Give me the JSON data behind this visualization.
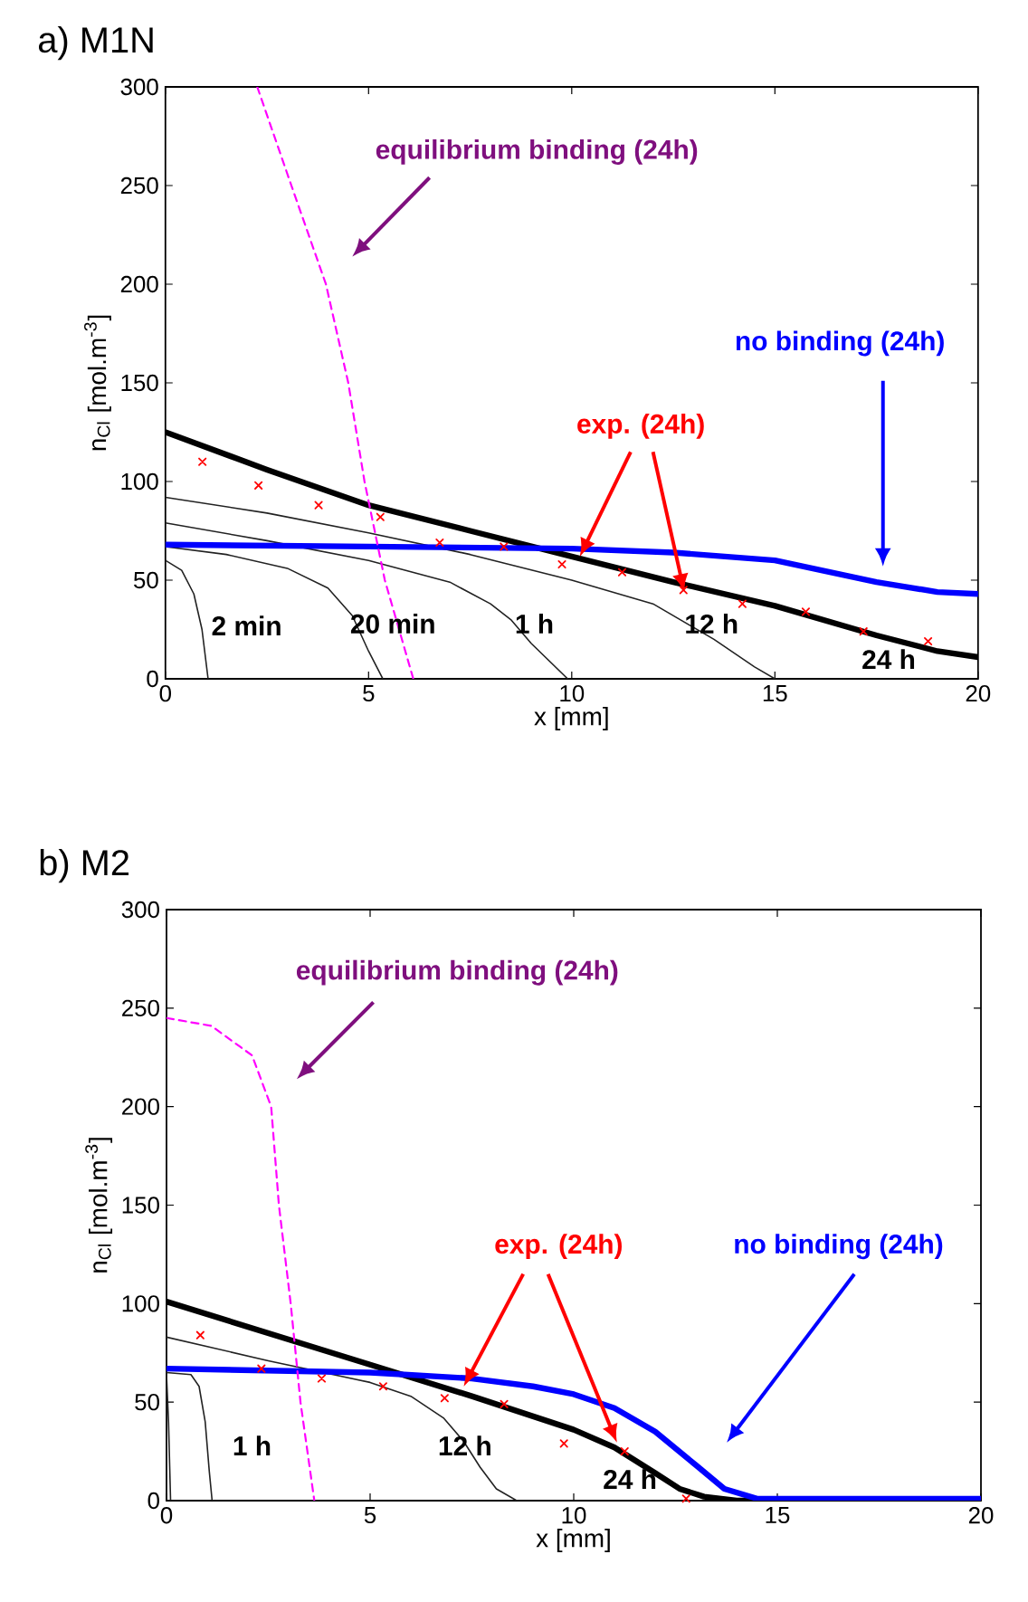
{
  "chart_data": [
    {
      "type": "line",
      "title": "a) M1N",
      "xlabel": "x [mm]",
      "ylabel": "n$_{Cl}$ [mol.m$^{-3}$]",
      "xlim": [
        0,
        20
      ],
      "ylim": [
        0,
        300
      ],
      "xticks": [
        0,
        5,
        10,
        15,
        20
      ],
      "yticks": [
        0,
        50,
        100,
        150,
        200,
        250,
        300
      ],
      "series": [
        {
          "color": "#222222",
          "x": [
            0,
            0.4,
            0.7,
            0.9,
            1.05
          ],
          "values": [
            60,
            55,
            43,
            25,
            0
          ]
        },
        {
          "color": "#222222",
          "x": [
            0,
            1.5,
            3,
            4,
            4.6,
            5.0,
            5.35
          ],
          "values": [
            67,
            63,
            56,
            46,
            32,
            14,
            0
          ]
        },
        {
          "color": "#222222",
          "x": [
            0,
            2.5,
            5,
            7,
            8,
            8.5,
            9,
            9.9
          ],
          "values": [
            79,
            70,
            60,
            49,
            38,
            30,
            18,
            0
          ]
        },
        {
          "color": "#222222",
          "x": [
            0,
            2.5,
            5,
            7.5,
            10,
            12,
            13.5,
            14.5,
            15
          ],
          "values": [
            92,
            84,
            74,
            63,
            50,
            38,
            20,
            6,
            0
          ]
        },
        {
          "color": "#000000",
          "x": [
            0,
            2.5,
            5,
            7.5,
            10,
            12.5,
            15,
            17.5,
            19,
            20
          ],
          "values": [
            125,
            106,
            88,
            75,
            62,
            49,
            37,
            22,
            14,
            11
          ]
        },
        {
          "color": "#0000ff",
          "x": [
            0,
            5,
            10,
            12.5,
            15,
            17.5,
            19,
            20
          ],
          "values": [
            68,
            67,
            66,
            64,
            60,
            49,
            44,
            43
          ]
        },
        {
          "color": "#ff00ff",
          "line_style": "dashed",
          "x": [
            2.26,
            3.1,
            3.95,
            4.5,
            4.9,
            5.4,
            6.1
          ],
          "values": [
            300,
            250,
            200,
            150,
            100,
            50,
            0
          ]
        },
        {
          "type": "scatter",
          "marker": "cross",
          "color": "#ff0000",
          "x": [
            0.91,
            2.29,
            3.77,
            5.29,
            6.75,
            8.33,
            9.76,
            11.24,
            12.75,
            14.2,
            15.76,
            17.18,
            18.77
          ],
          "values": [
            110,
            98,
            88,
            82,
            69,
            67,
            58,
            54,
            45,
            38,
            34,
            24,
            19
          ]
        }
      ],
      "annotations": [
        "equilibrium binding (24h)",
        "no binding (24h)",
        {
          "text": "exp. (24h)",
          "x": 10.2,
          "y": 62
        },
        "2 min",
        "20 min",
        "1 h",
        "12 h",
        "24 h"
      ]
    },
    {
      "type": "line",
      "title": "b) M2",
      "xlabel": "x [mm]",
      "ylabel": "n$_{Cl}$ [mol.m$^{-3}$]",
      "xlim": [
        0,
        20
      ],
      "ylim": [
        0,
        300
      ],
      "xticks": [
        0,
        5,
        10,
        15,
        20
      ],
      "yticks": [
        0,
        50,
        100,
        150,
        200,
        250,
        300
      ],
      "series": [
        {
          "color": "#222222",
          "x": [
            0,
            0.05,
            0.1
          ],
          "values": [
            64,
            40,
            0
          ]
        },
        {
          "color": "#222222",
          "x": [
            0,
            0.6,
            0.8,
            0.95,
            1.05,
            1.12
          ],
          "values": [
            65,
            64,
            58,
            40,
            15,
            0
          ]
        },
        {
          "color": "#222222",
          "x": [
            0,
            2.5,
            5,
            6,
            6.8,
            7.3,
            7.7,
            8.1,
            8.6
          ],
          "values": [
            83,
            71,
            60,
            53,
            42,
            30,
            17,
            6,
            0
          ]
        },
        {
          "color": "#000000",
          "x": [
            0,
            2.5,
            5,
            7.5,
            10,
            11,
            12,
            12.6,
            13.2,
            14,
            20
          ],
          "values": [
            101,
            85,
            69,
            53,
            36,
            27,
            14,
            6,
            2,
            0,
            0
          ]
        },
        {
          "color": "#0000ff",
          "x": [
            0,
            5,
            7.5,
            9,
            10,
            11,
            12,
            13,
            13.7,
            14.5,
            20
          ],
          "values": [
            67,
            65,
            62,
            58,
            54,
            47,
            35,
            18,
            6,
            1,
            1
          ]
        },
        {
          "color": "#ff00ff",
          "line_style": "dashed",
          "x": [
            0,
            1.1,
            2.1,
            2.57,
            2.76,
            3.05,
            3.29,
            3.63
          ],
          "values": [
            245,
            241,
            226,
            200,
            150,
            100,
            50,
            0
          ]
        },
        {
          "type": "scatter",
          "marker": "cross",
          "color": "#ff0000",
          "x": [
            0.83,
            2.33,
            3.81,
            5.32,
            6.83,
            8.29,
            9.76,
            11.25,
            12.76
          ],
          "values": [
            84,
            67,
            62,
            58,
            52,
            49,
            29,
            25,
            1
          ]
        }
      ],
      "annotations": [
        "equilibrium binding (24h)",
        {
          "text": "exp. (24h)",
          "x": 7.3,
          "y": 58
        },
        "no binding (24h)",
        "1 h",
        "12 h",
        "24 h"
      ]
    }
  ]
}
